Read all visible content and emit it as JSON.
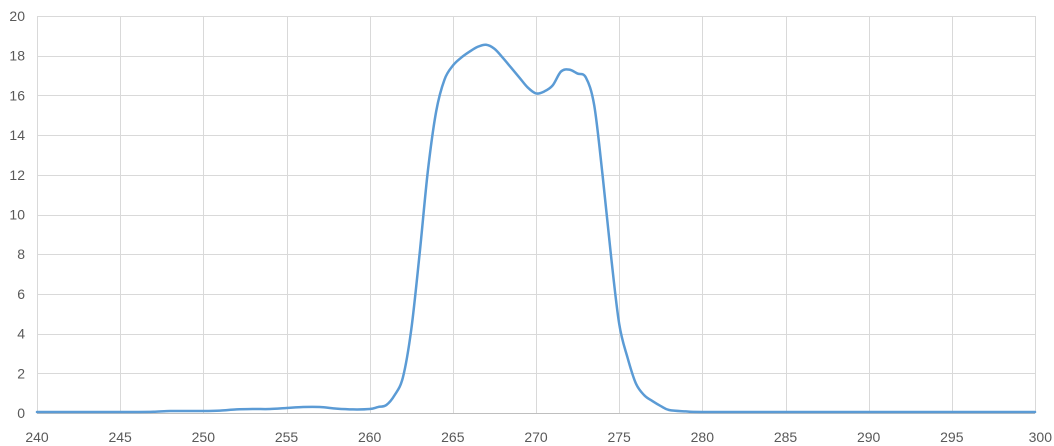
{
  "chart_data": {
    "type": "line",
    "title": "",
    "xlabel": "",
    "ylabel": "",
    "xlim": [
      240,
      300
    ],
    "ylim": [
      0,
      20
    ],
    "x_ticks": [
      240,
      245,
      250,
      255,
      260,
      265,
      270,
      275,
      280,
      285,
      290,
      295,
      300
    ],
    "y_ticks": [
      0,
      2,
      4,
      6,
      8,
      10,
      12,
      14,
      16,
      18,
      20
    ],
    "grid": true,
    "legend": "none",
    "series": [
      {
        "color": "#5b9bd5",
        "x": [
          240,
          242,
          244,
          246,
          247,
          248,
          249,
          250,
          251,
          252,
          253,
          254,
          255,
          256,
          257,
          258,
          259,
          260,
          260.5,
          261,
          261.5,
          262,
          262.5,
          263,
          263.5,
          264,
          264.5,
          265,
          265.5,
          266,
          266.5,
          267,
          267.5,
          268,
          268.5,
          269,
          269.5,
          270,
          270.5,
          271,
          271.5,
          272,
          272.5,
          273,
          273.5,
          274,
          274.5,
          275,
          275.5,
          276,
          276.5,
          277,
          277.5,
          278,
          279,
          280,
          285,
          290,
          295,
          300
        ],
        "y": [
          0.05,
          0.05,
          0.05,
          0.05,
          0.06,
          0.1,
          0.1,
          0.1,
          0.12,
          0.18,
          0.2,
          0.2,
          0.25,
          0.3,
          0.3,
          0.22,
          0.18,
          0.2,
          0.3,
          0.4,
          0.9,
          1.8,
          4.2,
          8.0,
          12.2,
          15.2,
          16.8,
          17.5,
          17.9,
          18.2,
          18.45,
          18.55,
          18.35,
          17.9,
          17.4,
          16.9,
          16.4,
          16.1,
          16.2,
          16.5,
          17.2,
          17.3,
          17.1,
          16.9,
          15.5,
          12.0,
          8.0,
          4.5,
          2.8,
          1.5,
          0.9,
          0.6,
          0.35,
          0.15,
          0.08,
          0.05,
          0.05,
          0.05,
          0.05,
          0.05
        ]
      }
    ]
  }
}
